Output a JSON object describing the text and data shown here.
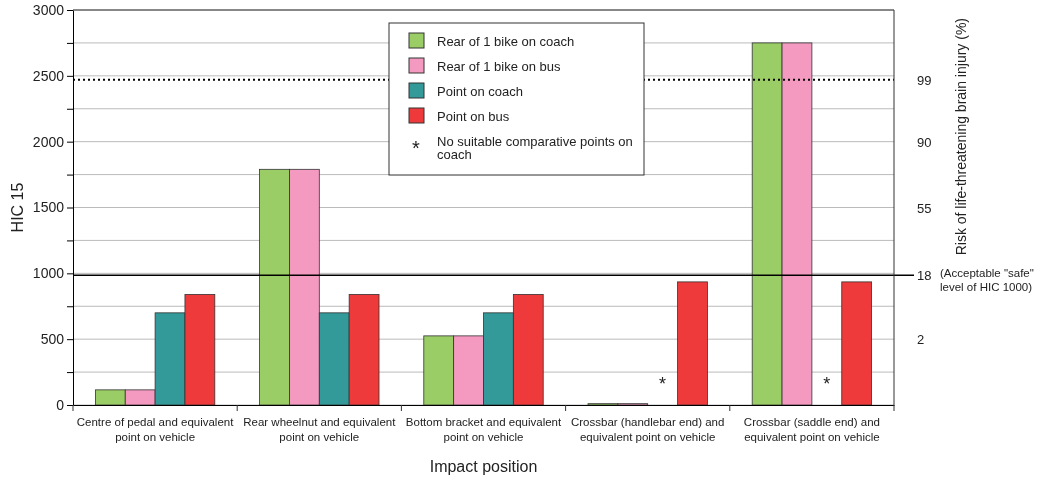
{
  "chart_data": {
    "type": "bar",
    "xlabel": "Impact position",
    "ylabel": "HIC 15",
    "y2label": "Risk of life-threatening brain injury (%)",
    "categories": [
      "Centre of pedal and equivalent point on vehicle",
      "Rear wheelnut and equivalent point on vehicle",
      "Bottom bracket and equivalent point on vehicle",
      "Crossbar (handlebar end) and equivalent point on vehicle",
      "Crossbar (saddle end) and equivalent point on vehicle"
    ],
    "series": [
      {
        "name": "Rear of 1 bike on coach",
        "color": "#9acd65",
        "values": [
          115,
          1790,
          525,
          10,
          2750
        ]
      },
      {
        "name": "Rear of 1 bike on bus",
        "color": "#f49ac1",
        "values": [
          115,
          1790,
          525,
          10,
          2750
        ]
      },
      {
        "name": "Point on coach",
        "color": "#339999",
        "values": [
          700,
          700,
          700,
          null,
          null
        ]
      },
      {
        "name": "Point on bus",
        "color": "#ee3a3a",
        "values": [
          840,
          840,
          840,
          935,
          935
        ]
      }
    ],
    "ylim": [
      0,
      3000
    ],
    "yticks": [
      0,
      {
        "value": 250,
        "label": null
      },
      500,
      {
        "value": 750,
        "label": null
      },
      1000,
      {
        "value": 1250,
        "label": null
      },
      1500,
      {
        "value": 1750,
        "label": null
      },
      2000,
      {
        "value": 2250,
        "label": null
      },
      2500,
      {
        "value": 2750,
        "label": null
      },
      3000
    ],
    "grid": "y",
    "legend": "top right",
    "ref_lines": [
      {
        "axis": "y",
        "value": 985,
        "label": "(Acceptable \"safe\" level of HIC 1000)",
        "color": "#000000",
        "line_style": "solid"
      },
      {
        "axis": "y",
        "value": 2470,
        "color": "#000000",
        "line_style": "dotted"
      }
    ],
    "annotations": [
      "No suitable comparative points on coach",
      "*",
      "*",
      "2",
      "18",
      "55",
      "90",
      "99"
    ]
  }
}
